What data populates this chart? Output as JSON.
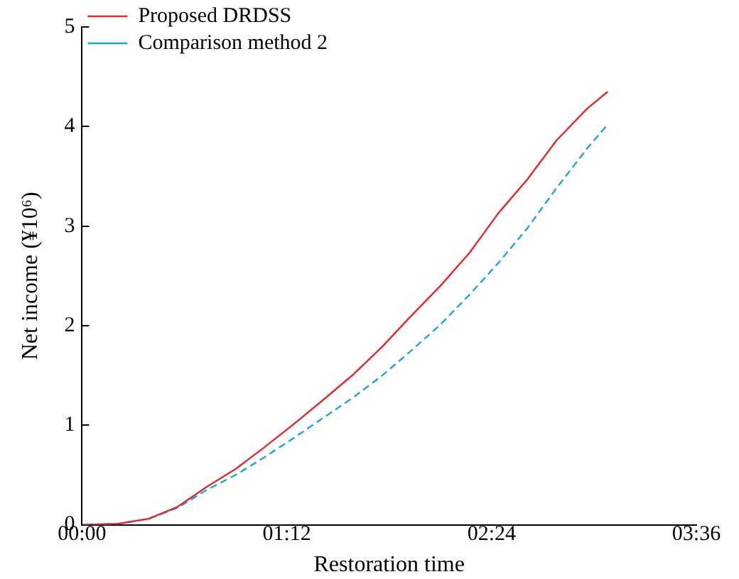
{
  "chart_data": {
    "type": "line",
    "xlabel": "Restoration time",
    "ylabel": "Net income (¥10⁶)",
    "xlim": [
      0,
      3.6
    ],
    "xticks": [
      {
        "value": 0,
        "label": "00:00"
      },
      {
        "value": 1.2,
        "label": "01:12"
      },
      {
        "value": 2.4,
        "label": "02:24"
      },
      {
        "value": 3.6,
        "label": "03:36"
      }
    ],
    "ylim": [
      0,
      5
    ],
    "yticks": [
      0,
      1,
      2,
      3,
      4,
      5
    ],
    "grid": false,
    "legend": "top left",
    "series": [
      {
        "name": "Proposed DRDSS",
        "color": "#e8262c",
        "line_style": "solid",
        "x": [
          0,
          0.21,
          0.39,
          0.56,
          0.73,
          0.9,
          1.07,
          1.24,
          1.41,
          1.59,
          1.76,
          1.93,
          2.1,
          2.27,
          2.44,
          2.61,
          2.78,
          2.96,
          3.08
        ],
        "values": [
          0,
          0.01,
          0.06,
          0.18,
          0.38,
          0.56,
          0.78,
          1.01,
          1.25,
          1.51,
          1.79,
          2.1,
          2.4,
          2.73,
          3.13,
          3.47,
          3.86,
          4.18,
          4.35
        ]
      },
      {
        "name": "Comparison method 2",
        "color": "#1aa7e0",
        "line_style": "dashed",
        "x": [
          0,
          0.21,
          0.39,
          0.56,
          0.73,
          0.9,
          1.07,
          1.24,
          1.41,
          1.59,
          1.76,
          1.93,
          2.1,
          2.27,
          2.44,
          2.61,
          2.78,
          2.96,
          3.08
        ],
        "values": [
          0,
          0.01,
          0.06,
          0.17,
          0.35,
          0.5,
          0.68,
          0.87,
          1.07,
          1.28,
          1.5,
          1.75,
          2.01,
          2.31,
          2.63,
          2.98,
          3.38,
          3.78,
          4.02
        ]
      }
    ]
  }
}
